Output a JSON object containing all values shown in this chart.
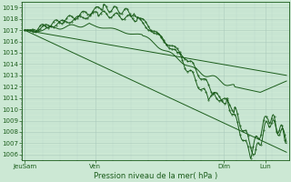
{
  "xlabel": "Pression niveau de la mer( hPa )",
  "ylim": [
    1005.5,
    1019.5
  ],
  "ytick_labels": [
    "1006",
    "1007",
    "1008",
    "1009",
    "1010",
    "1011",
    "1012",
    "1013",
    "1014",
    "1015",
    "1016",
    "1017",
    "1018",
    "1019"
  ],
  "ytick_values": [
    1006,
    1007,
    1008,
    1009,
    1010,
    1011,
    1012,
    1013,
    1014,
    1015,
    1016,
    1017,
    1018,
    1019
  ],
  "xtick_labels": [
    "JeuSam",
    "Ven",
    "Dim",
    "Lun"
  ],
  "xtick_positions": [
    0.0,
    0.27,
    0.76,
    0.92
  ],
  "bg_color": "#cce8d4",
  "grid_major_color": "#aacabc",
  "grid_minor_color": "#bbdacc",
  "line_color": "#1a5c1a",
  "figsize": [
    3.2,
    2.0
  ],
  "dpi": 100
}
